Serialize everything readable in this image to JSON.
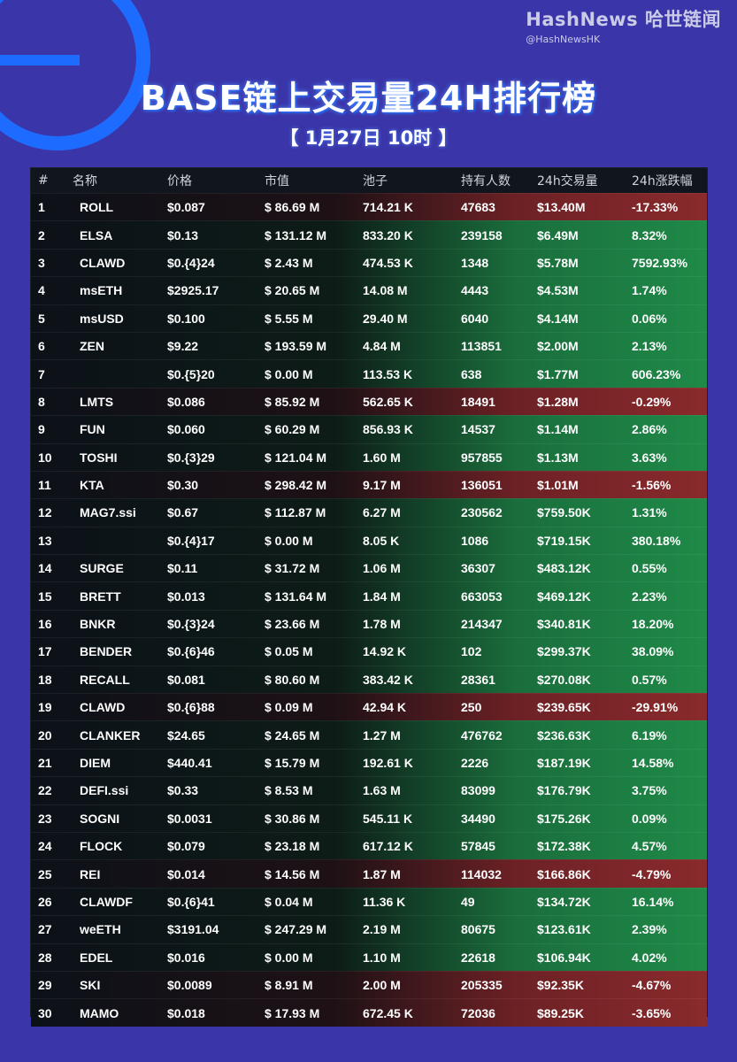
{
  "brand": {
    "name": "HashNews 哈世链闻",
    "handle": "@HashNewsHK"
  },
  "title": "BASE链上交易量24H排行榜",
  "subtitle": "【 1月27日  10时 】",
  "colors": {
    "up": "#1f8a48",
    "down": "#8a2a2c",
    "background": "#3a35a8",
    "accent": "#1e6cff"
  },
  "table": {
    "headers": [
      "#",
      "名称",
      "价格",
      "市值",
      "池子",
      "持有人数",
      "24h交易量",
      "24h涨跌幅"
    ],
    "rows": [
      {
        "rank": "1",
        "name": "ROLL",
        "price": "$0.087",
        "mcap": "$ 86.69 M",
        "pool": "714.21 K",
        "holders": "47683",
        "volume": "$13.40M",
        "change": "-17.33%",
        "dir": "down"
      },
      {
        "rank": "2",
        "name": "ELSA",
        "price": "$0.13",
        "mcap": "$ 131.12 M",
        "pool": "833.20 K",
        "holders": "239158",
        "volume": "$6.49M",
        "change": "8.32%",
        "dir": "up"
      },
      {
        "rank": "3",
        "name": "CLAWD",
        "price": "$0.{4}24",
        "mcap": "$ 2.43 M",
        "pool": "474.53 K",
        "holders": "1348",
        "volume": "$5.78M",
        "change": "7592.93%",
        "dir": "up"
      },
      {
        "rank": "4",
        "name": "msETH",
        "price": "$2925.17",
        "mcap": "$ 20.65 M",
        "pool": "14.08 M",
        "holders": "4443",
        "volume": "$4.53M",
        "change": "1.74%",
        "dir": "up"
      },
      {
        "rank": "5",
        "name": "msUSD",
        "price": "$0.100",
        "mcap": "$ 5.55 M",
        "pool": "29.40 M",
        "holders": "6040",
        "volume": "$4.14M",
        "change": "0.06%",
        "dir": "up"
      },
      {
        "rank": "6",
        "name": "ZEN",
        "price": "$9.22",
        "mcap": "$ 193.59 M",
        "pool": "4.84 M",
        "holders": "113851",
        "volume": "$2.00M",
        "change": "2.13%",
        "dir": "up"
      },
      {
        "rank": "7",
        "name": "",
        "price": "$0.{5}20",
        "mcap": "$ 0.00 M",
        "pool": "113.53 K",
        "holders": "638",
        "volume": "$1.77M",
        "change": "606.23%",
        "dir": "up"
      },
      {
        "rank": "8",
        "name": "LMTS",
        "price": "$0.086",
        "mcap": "$ 85.92 M",
        "pool": "562.65 K",
        "holders": "18491",
        "volume": "$1.28M",
        "change": "-0.29%",
        "dir": "down"
      },
      {
        "rank": "9",
        "name": "FUN",
        "price": "$0.060",
        "mcap": "$ 60.29 M",
        "pool": "856.93 K",
        "holders": "14537",
        "volume": "$1.14M",
        "change": "2.86%",
        "dir": "up"
      },
      {
        "rank": "10",
        "name": "TOSHI",
        "price": "$0.{3}29",
        "mcap": "$ 121.04 M",
        "pool": "1.60 M",
        "holders": "957855",
        "volume": "$1.13M",
        "change": "3.63%",
        "dir": "up"
      },
      {
        "rank": "11",
        "name": "KTA",
        "price": "$0.30",
        "mcap": "$ 298.42 M",
        "pool": "9.17 M",
        "holders": "136051",
        "volume": "$1.01M",
        "change": "-1.56%",
        "dir": "down"
      },
      {
        "rank": "12",
        "name": "MAG7.ssi",
        "price": "$0.67",
        "mcap": "$ 112.87 M",
        "pool": "6.27 M",
        "holders": "230562",
        "volume": "$759.50K",
        "change": "1.31%",
        "dir": "up"
      },
      {
        "rank": "13",
        "name": "",
        "price": "$0.{4}17",
        "mcap": "$ 0.00 M",
        "pool": "8.05 K",
        "holders": "1086",
        "volume": "$719.15K",
        "change": "380.18%",
        "dir": "up"
      },
      {
        "rank": "14",
        "name": "SURGE",
        "price": "$0.11",
        "mcap": "$ 31.72 M",
        "pool": "1.06 M",
        "holders": "36307",
        "volume": "$483.12K",
        "change": "0.55%",
        "dir": "up"
      },
      {
        "rank": "15",
        "name": "BRETT",
        "price": "$0.013",
        "mcap": "$ 131.64 M",
        "pool": "1.84 M",
        "holders": "663053",
        "volume": "$469.12K",
        "change": "2.23%",
        "dir": "up"
      },
      {
        "rank": "16",
        "name": "BNKR",
        "price": "$0.{3}24",
        "mcap": "$ 23.66 M",
        "pool": "1.78 M",
        "holders": "214347",
        "volume": "$340.81K",
        "change": "18.20%",
        "dir": "up"
      },
      {
        "rank": "17",
        "name": "BENDER",
        "price": "$0.{6}46",
        "mcap": "$ 0.05 M",
        "pool": "14.92 K",
        "holders": "102",
        "volume": "$299.37K",
        "change": "38.09%",
        "dir": "up"
      },
      {
        "rank": "18",
        "name": "RECALL",
        "price": "$0.081",
        "mcap": "$ 80.60 M",
        "pool": "383.42 K",
        "holders": "28361",
        "volume": "$270.08K",
        "change": "0.57%",
        "dir": "up"
      },
      {
        "rank": "19",
        "name": "CLAWD",
        "price": "$0.{6}88",
        "mcap": "$ 0.09 M",
        "pool": "42.94 K",
        "holders": "250",
        "volume": "$239.65K",
        "change": "-29.91%",
        "dir": "down"
      },
      {
        "rank": "20",
        "name": "CLANKER",
        "price": "$24.65",
        "mcap": "$ 24.65 M",
        "pool": "1.27 M",
        "holders": "476762",
        "volume": "$236.63K",
        "change": "6.19%",
        "dir": "up"
      },
      {
        "rank": "21",
        "name": "DIEM",
        "price": "$440.41",
        "mcap": "$ 15.79 M",
        "pool": "192.61 K",
        "holders": "2226",
        "volume": "$187.19K",
        "change": "14.58%",
        "dir": "up"
      },
      {
        "rank": "22",
        "name": "DEFI.ssi",
        "price": "$0.33",
        "mcap": "$ 8.53 M",
        "pool": "1.63 M",
        "holders": "83099",
        "volume": "$176.79K",
        "change": "3.75%",
        "dir": "up"
      },
      {
        "rank": "23",
        "name": "SOGNI",
        "price": "$0.0031",
        "mcap": "$ 30.86 M",
        "pool": "545.11 K",
        "holders": "34490",
        "volume": "$175.26K",
        "change": "0.09%",
        "dir": "up"
      },
      {
        "rank": "24",
        "name": "FLOCK",
        "price": "$0.079",
        "mcap": "$ 23.18 M",
        "pool": "617.12 K",
        "holders": "57845",
        "volume": "$172.38K",
        "change": "4.57%",
        "dir": "up"
      },
      {
        "rank": "25",
        "name": "REI",
        "price": "$0.014",
        "mcap": "$ 14.56 M",
        "pool": "1.87 M",
        "holders": "114032",
        "volume": "$166.86K",
        "change": "-4.79%",
        "dir": "down"
      },
      {
        "rank": "26",
        "name": "CLAWDF",
        "price": "$0.{6}41",
        "mcap": "$ 0.04 M",
        "pool": "11.36 K",
        "holders": "49",
        "volume": "$134.72K",
        "change": "16.14%",
        "dir": "up"
      },
      {
        "rank": "27",
        "name": "weETH",
        "price": "$3191.04",
        "mcap": "$ 247.29 M",
        "pool": "2.19 M",
        "holders": "80675",
        "volume": "$123.61K",
        "change": "2.39%",
        "dir": "up"
      },
      {
        "rank": "28",
        "name": "EDEL",
        "price": "$0.016",
        "mcap": "$ 0.00 M",
        "pool": "1.10 M",
        "holders": "22618",
        "volume": "$106.94K",
        "change": "4.02%",
        "dir": "up"
      },
      {
        "rank": "29",
        "name": "SKI",
        "price": "$0.0089",
        "mcap": "$ 8.91 M",
        "pool": "2.00 M",
        "holders": "205335",
        "volume": "$92.35K",
        "change": "-4.67%",
        "dir": "down"
      },
      {
        "rank": "30",
        "name": "MAMO",
        "price": "$0.018",
        "mcap": "$ 17.93 M",
        "pool": "672.45 K",
        "holders": "72036",
        "volume": "$89.25K",
        "change": "-3.65%",
        "dir": "down"
      }
    ]
  }
}
